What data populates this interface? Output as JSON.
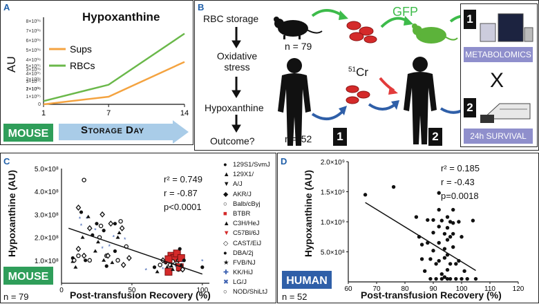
{
  "panels": {
    "a": {
      "label": "A",
      "title": "Hypoxanthine",
      "ylabel": "AU",
      "badge": "MOUSE",
      "xaxis_arrow": "Storage Day",
      "colors": {
        "sups": "#f4a340",
        "rbcs": "#6ab84a",
        "badge": "#2f9e5a",
        "arrow": "#a9cce8"
      }
    },
    "b": {
      "label": "B",
      "flow": [
        "RBC storage",
        "Oxidative stress",
        "Hypoxanthine",
        "Outcome?"
      ],
      "n_mouse": "n = 79",
      "n_human": "n = 52",
      "gfp": "GFP",
      "cr_mass": "51",
      "cr_el": "Cr",
      "step1": "1",
      "step2": "2",
      "metabolomics": "METABOLOMICS",
      "times": "X",
      "survival": "24h SURVIVAL",
      "colors": {
        "green_arrow": "#3dbb4a",
        "blue_arrow": "#2f5fa8",
        "red_arrow": "#e23b3b",
        "rbc": "#d42a2a",
        "gfp_mouse": "#5cb33a"
      }
    },
    "c": {
      "label": "C",
      "badge": "MOUSE",
      "n": "n = 79",
      "stats": [
        "r² = 0.749",
        "r = -0.87",
        "p<0.0001"
      ],
      "legend": [
        "129S1/SvmJ",
        "129X1/",
        "A/J",
        "AKR/J",
        "Balb/cByj",
        "BTBR",
        "C3H/HeJ",
        "C57Bl/6J",
        "CAST/EiJ",
        "DBA/2j",
        "FVB/NJ",
        "KK/HiJ",
        "LG/J",
        "NOD/ShiLtJ"
      ]
    },
    "d": {
      "label": "D",
      "badge": "HUMAN",
      "n": "n = 52",
      "stats": [
        "r² = 0.185",
        "r = -0.43",
        "p=0.0018"
      ]
    }
  },
  "chart_data": [
    {
      "type": "line",
      "title": "Hypoxanthine",
      "xlabel": "Storage Day",
      "ylabel": "AU",
      "x": [
        1,
        7,
        14
      ],
      "ylim": [
        0,
        8000000
      ],
      "yticks": [
        "0",
        "1×10⁰⁶",
        "2×10⁰⁶",
        "3×10⁰⁶",
        "4×10⁰⁶",
        "5×10⁰⁶",
        "6×10⁰⁶",
        "7×10⁰⁶",
        "8×10⁰⁶",
        "0",
        "1×10⁰⁵",
        "2×10⁰⁵",
        "3×10⁰⁵",
        "4×10⁰⁵",
        "5×10⁰⁵"
      ],
      "xticks": [
        "1",
        "7",
        "14"
      ],
      "series": [
        {
          "name": "Sups",
          "values": [
            0,
            700000,
            3900000
          ]
        },
        {
          "name": "RBCs",
          "values": [
            300000,
            1800000,
            6500000
          ]
        }
      ]
    },
    {
      "type": "scatter",
      "xlabel": "Post-transfusion Recovery (%)",
      "ylabel": "Hypoxanthine (AU)",
      "xlim": [
        0,
        105
      ],
      "ylim": [
        0,
        500000000
      ],
      "xticks": [
        "0",
        "50",
        "100"
      ],
      "yticks": [
        "1.0×10⁸",
        "2.0×10⁸",
        "3.0×10⁸",
        "4.0×10⁸",
        "5.0×10⁸"
      ],
      "points": [
        [
          8,
          110000000
        ],
        [
          10,
          70000000
        ],
        [
          12,
          120000000
        ],
        [
          12,
          150000000
        ],
        [
          14,
          250000000
        ],
        [
          14,
          310000000
        ],
        [
          15,
          200000000
        ],
        [
          16,
          450000000
        ],
        [
          16,
          120000000
        ],
        [
          18,
          280000000
        ],
        [
          17,
          100000000
        ],
        [
          19,
          290000000
        ],
        [
          20,
          100000000
        ],
        [
          20,
          240000000
        ],
        [
          24,
          230000000
        ],
        [
          25,
          260000000
        ],
        [
          26,
          180000000
        ],
        [
          27,
          200000000
        ],
        [
          29,
          300000000
        ],
        [
          29,
          150000000
        ],
        [
          30,
          230000000
        ],
        [
          30,
          100000000
        ],
        [
          32,
          120000000
        ],
        [
          35,
          260000000
        ],
        [
          37,
          200000000
        ],
        [
          38,
          260000000
        ],
        [
          40,
          200000000
        ],
        [
          42,
          270000000
        ],
        [
          43,
          240000000
        ],
        [
          45,
          190000000
        ],
        [
          32,
          75000000
        ],
        [
          36,
          90000000
        ],
        [
          40,
          100000000
        ],
        [
          44,
          80000000
        ],
        [
          60,
          55000000
        ],
        [
          66,
          70000000
        ],
        [
          68,
          50000000
        ],
        [
          70,
          80000000
        ],
        [
          72,
          100000000
        ],
        [
          72,
          60000000
        ],
        [
          74,
          90000000
        ],
        [
          75,
          70000000
        ],
        [
          76,
          50000000
        ],
        [
          77,
          80000000
        ],
        [
          78,
          100000000
        ],
        [
          78,
          120000000
        ],
        [
          79,
          60000000
        ],
        [
          80,
          90000000
        ],
        [
          80,
          110000000
        ],
        [
          81,
          70000000
        ],
        [
          82,
          80000000
        ],
        [
          82,
          130000000
        ],
        [
          83,
          60000000
        ],
        [
          83,
          100000000
        ],
        [
          84,
          70000000
        ],
        [
          84,
          150000000
        ],
        [
          85,
          80000000
        ],
        [
          85,
          110000000
        ],
        [
          86,
          60000000
        ],
        [
          86,
          90000000
        ],
        [
          87,
          100000000
        ],
        [
          78,
          75000000
        ],
        [
          79,
          95000000
        ],
        [
          76,
          105000000
        ],
        [
          100,
          95000000
        ],
        [
          100,
          70000000
        ],
        [
          8,
          95000000
        ],
        [
          9,
          100000000
        ],
        [
          12,
          330000000
        ],
        [
          13,
          280000000
        ],
        [
          22,
          210000000
        ],
        [
          24,
          140000000
        ],
        [
          28,
          250000000
        ],
        [
          33,
          120000000
        ],
        [
          34,
          160000000
        ],
        [
          38,
          140000000
        ],
        [
          41,
          220000000
        ],
        [
          46,
          160000000
        ],
        [
          48,
          110000000
        ]
      ],
      "fit": [
        [
          5,
          240000000
        ],
        [
          100,
          40000000
        ]
      ]
    },
    {
      "type": "scatter",
      "xlabel": "Post-transfusion Recovery (%)",
      "ylabel": "Hypoxanthine (AU)",
      "xlim": [
        60,
        120
      ],
      "ylim": [
        0,
        2000000000
      ],
      "xticks": [
        "60",
        "70",
        "80",
        "90",
        "100",
        "110",
        "120"
      ],
      "yticks": [
        "5.0×10⁸",
        "1.0×10⁹",
        "1.5×10⁹",
        "2.0×10⁹"
      ],
      "points": [
        [
          66,
          1450000000
        ],
        [
          76,
          1580000000
        ],
        [
          84,
          1080000000
        ],
        [
          85,
          750000000
        ],
        [
          86,
          620000000
        ],
        [
          86,
          380000000
        ],
        [
          87,
          180000000
        ],
        [
          88,
          1030000000
        ],
        [
          88,
          650000000
        ],
        [
          89,
          380000000
        ],
        [
          89,
          50000000
        ],
        [
          90,
          1030000000
        ],
        [
          90,
          820000000
        ],
        [
          90,
          520000000
        ],
        [
          91,
          300000000
        ],
        [
          91,
          50000000
        ],
        [
          92,
          1480000000
        ],
        [
          92,
          1200000000
        ],
        [
          92,
          920000000
        ],
        [
          92,
          650000000
        ],
        [
          92,
          350000000
        ],
        [
          93,
          130000000
        ],
        [
          93,
          50000000
        ],
        [
          93,
          1020000000
        ],
        [
          94,
          800000000
        ],
        [
          94,
          550000000
        ],
        [
          94,
          400000000
        ],
        [
          94,
          80000000
        ],
        [
          95,
          1080000000
        ],
        [
          95,
          900000000
        ],
        [
          95,
          700000000
        ],
        [
          95,
          450000000
        ],
        [
          95,
          200000000
        ],
        [
          95,
          50000000
        ],
        [
          96,
          1000000000
        ],
        [
          96,
          750000000
        ],
        [
          96,
          300000000
        ],
        [
          96,
          50000000
        ],
        [
          97,
          1200000000
        ],
        [
          97,
          980000000
        ],
        [
          97,
          800000000
        ],
        [
          97,
          580000000
        ],
        [
          98,
          300000000
        ],
        [
          98,
          50000000
        ],
        [
          99,
          1000000000
        ],
        [
          99,
          350000000
        ],
        [
          100,
          750000000
        ],
        [
          100,
          50000000
        ],
        [
          101,
          180000000
        ],
        [
          102,
          50000000
        ],
        [
          104,
          1020000000
        ],
        [
          105,
          50000000
        ]
      ],
      "fit": [
        [
          66,
          1320000000
        ],
        [
          105,
          190000000
        ]
      ]
    }
  ]
}
